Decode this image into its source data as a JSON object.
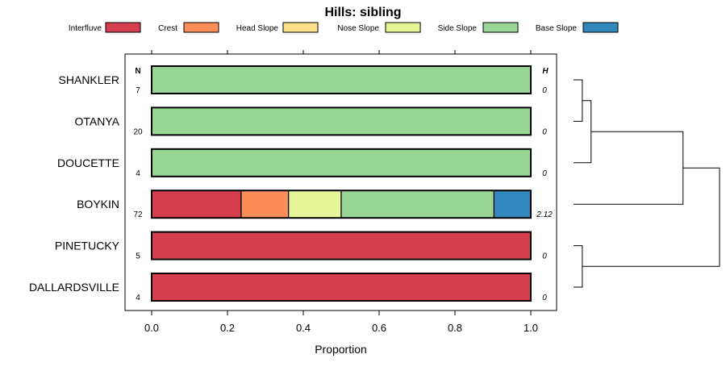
{
  "chart_data": {
    "type": "bar",
    "subtype": "stacked-horizontal-proportion",
    "title": "Hills: sibling",
    "xlabel": "Proportion",
    "ylabel": "",
    "xlim": [
      0,
      1
    ],
    "xticks": [
      "0.0",
      "0.2",
      "0.4",
      "0.6",
      "0.8",
      "1.0"
    ],
    "n_header": "N",
    "h_header": "H",
    "legend": [
      {
        "name": "Interfluve",
        "color": "#D53E4F"
      },
      {
        "name": "Crest",
        "color": "#FC8D59"
      },
      {
        "name": "Head Slope",
        "color": "#FEE08B"
      },
      {
        "name": "Nose Slope",
        "color": "#E6F598"
      },
      {
        "name": "Side Slope",
        "color": "#99D594"
      },
      {
        "name": "Base Slope",
        "color": "#3288BD"
      }
    ],
    "categories": [
      "SHANKLER",
      "OTANYA",
      "DOUCETTE",
      "BOYKIN",
      "PINETUCKY",
      "DALLARDSVILLE"
    ],
    "n": [
      "7",
      "20",
      "4",
      "72",
      "5",
      "4"
    ],
    "h": [
      "0",
      "0",
      "0",
      "2.12",
      "0",
      "0"
    ],
    "series": [
      {
        "name": "Interfluve",
        "values": [
          0,
          0,
          0,
          0.236,
          1,
          1
        ]
      },
      {
        "name": "Crest",
        "values": [
          0,
          0,
          0,
          0.125,
          0,
          0
        ]
      },
      {
        "name": "Head Slope",
        "values": [
          0,
          0,
          0,
          0,
          0,
          0
        ]
      },
      {
        "name": "Nose Slope",
        "values": [
          0,
          0,
          0,
          0.139,
          0,
          0
        ]
      },
      {
        "name": "Side Slope",
        "values": [
          1,
          1,
          1,
          0.403,
          0,
          0
        ]
      },
      {
        "name": "Base Slope",
        "values": [
          0,
          0,
          0,
          0.097,
          0,
          0
        ]
      }
    ],
    "dendrogram": {
      "type": "hierarchical-clustering",
      "merges": [
        [
          0,
          1,
          0.06
        ],
        [
          -1,
          2,
          0.12
        ],
        [
          -2,
          3,
          0.75
        ],
        [
          4,
          5,
          0.06
        ],
        [
          -3,
          -4,
          1.0
        ]
      ]
    }
  }
}
